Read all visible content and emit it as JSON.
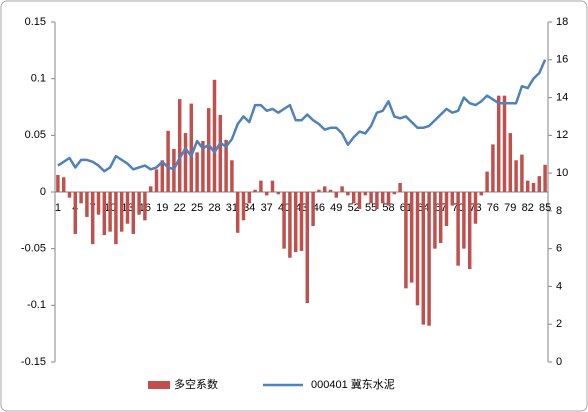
{
  "chart_data": {
    "type": "bar-line",
    "categories": [
      "1",
      null,
      null,
      "4",
      null,
      null,
      "7",
      null,
      null,
      "10",
      null,
      null,
      "13",
      null,
      null,
      "16",
      null,
      null,
      "19",
      null,
      null,
      "22",
      null,
      null,
      "25",
      null,
      null,
      "28",
      null,
      null,
      "31",
      null,
      null,
      "34",
      null,
      null,
      "37",
      null,
      null,
      "40",
      null,
      null,
      "43",
      null,
      null,
      "46",
      null,
      null,
      "49",
      null,
      null,
      "52",
      null,
      null,
      "55",
      null,
      null,
      "58",
      null,
      null,
      "61",
      null,
      null,
      "64",
      null,
      null,
      "67",
      null,
      null,
      "70",
      null,
      null,
      "73",
      null,
      null,
      "76",
      null,
      null,
      "79",
      null,
      null,
      "82",
      null,
      null,
      "85"
    ],
    "series": [
      {
        "name": "多空系数",
        "type": "bar",
        "color": "#c0504d",
        "axis": "y",
        "values": [
          0.015,
          0.013,
          -0.005,
          -0.037,
          -0.01,
          -0.022,
          -0.046,
          -0.02,
          -0.038,
          -0.035,
          -0.046,
          -0.035,
          -0.028,
          -0.037,
          -0.02,
          -0.025,
          0.005,
          0.02,
          0.028,
          0.054,
          0.038,
          0.082,
          0.052,
          0.078,
          0.035,
          0.045,
          0.074,
          0.099,
          0.068,
          0.046,
          0.028,
          -0.036,
          -0.025,
          -0.01,
          0.002,
          0.01,
          -0.003,
          0.01,
          -0.002,
          -0.05,
          -0.058,
          -0.053,
          -0.052,
          -0.098,
          -0.03,
          0.002,
          0.005,
          0.002,
          -0.005,
          0.005,
          -0.003,
          -0.01,
          -0.015,
          -0.003,
          -0.01,
          -0.015,
          -0.01,
          -0.012,
          -0.002,
          0.008,
          -0.085,
          -0.08,
          -0.1,
          -0.117,
          -0.118,
          -0.05,
          -0.045,
          -0.03,
          -0.012,
          -0.065,
          -0.05,
          -0.068,
          -0.028,
          -0.003,
          0.018,
          0.042,
          0.085,
          0.085,
          0.052,
          0.028,
          0.033,
          0.01,
          0.008,
          0.014,
          0.024
        ]
      },
      {
        "name": "000401 冀东水泥",
        "type": "line",
        "color": "#4f81bd",
        "axis": "y2",
        "values": [
          10.4,
          10.6,
          10.8,
          10.3,
          10.7,
          10.7,
          10.6,
          10.4,
          10.1,
          10.3,
          10.9,
          10.7,
          10.5,
          10.2,
          10.3,
          10.4,
          10.2,
          10.3,
          10.6,
          10.3,
          10.2,
          10.8,
          11.3,
          10.9,
          11.7,
          11.3,
          11.5,
          11.1,
          11.6,
          11.4,
          11.8,
          12.6,
          13.0,
          12.7,
          13.6,
          13.6,
          13.3,
          13.4,
          13.2,
          13.4,
          13.6,
          12.8,
          12.8,
          13.1,
          12.8,
          12.6,
          12.3,
          12.4,
          12.4,
          12.1,
          11.5,
          11.9,
          12.2,
          12.1,
          12.5,
          13.2,
          13.3,
          13.8,
          13.0,
          12.9,
          13.0,
          12.7,
          12.4,
          12.4,
          12.5,
          12.8,
          13.1,
          13.4,
          13.2,
          13.3,
          14.0,
          13.7,
          13.6,
          13.8,
          14.1,
          13.9,
          13.7,
          13.7,
          13.7,
          13.7,
          14.6,
          14.5,
          15.0,
          15.3,
          16.0
        ]
      }
    ],
    "ylim": [
      -0.15,
      0.15
    ],
    "yticks": [
      -0.15,
      -0.1,
      -0.05,
      0,
      0.05,
      0.1,
      0.15
    ],
    "y2lim": [
      0,
      18
    ],
    "y2ticks": [
      0,
      2,
      4,
      6,
      8,
      10,
      12,
      14,
      16,
      18
    ],
    "grid": false,
    "legend": "bottom"
  }
}
